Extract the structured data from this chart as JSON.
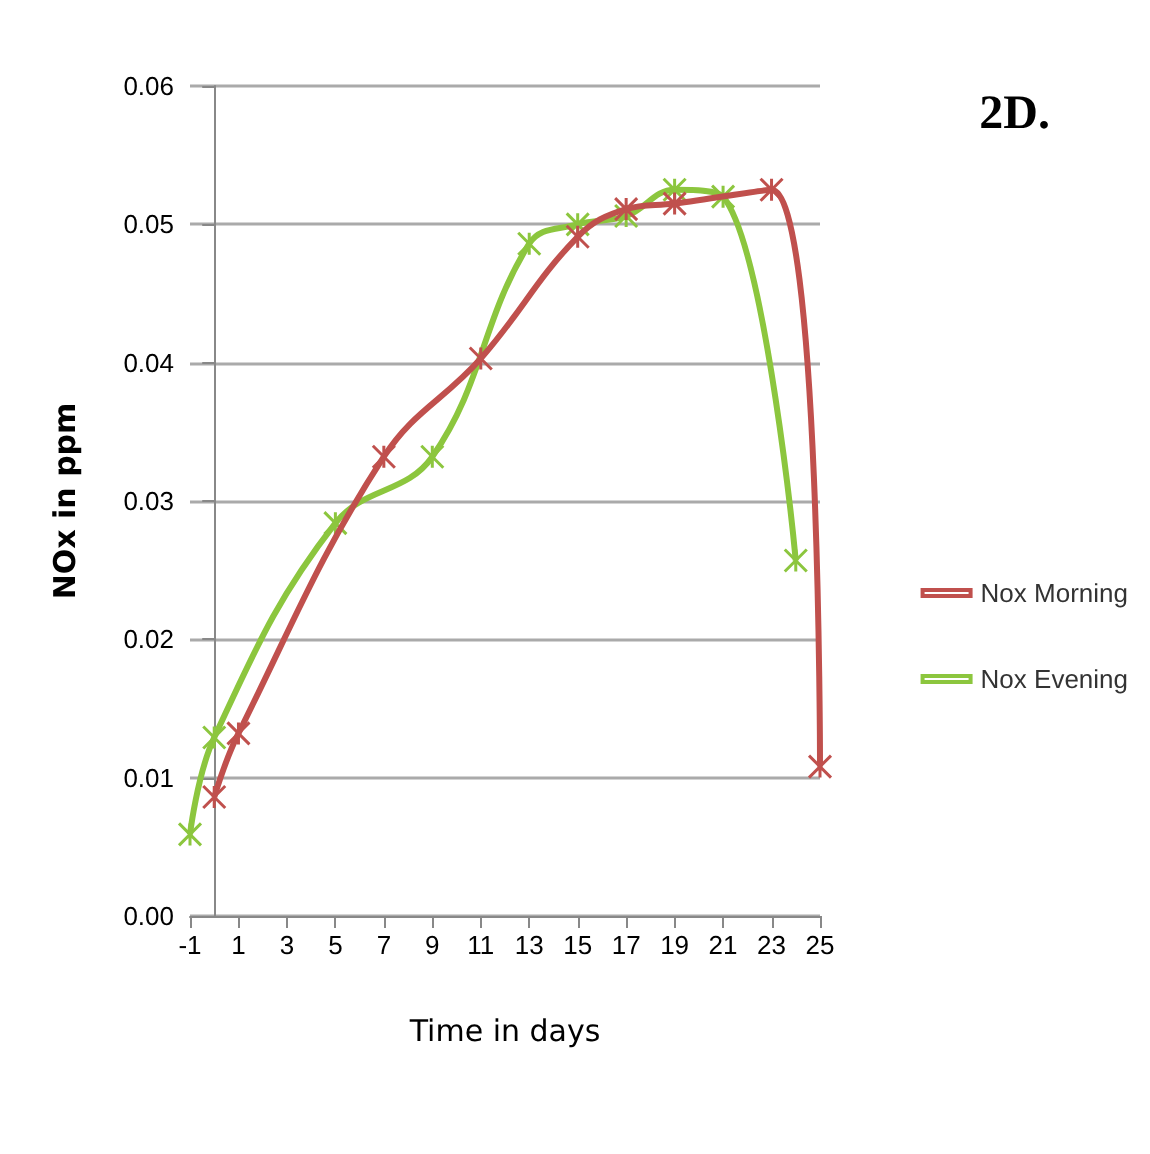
{
  "chart_data": {
    "type": "line",
    "title": "2D.",
    "xlabel": "Time in days",
    "ylabel": "NOx in ppm",
    "xlim": [
      -1,
      25
    ],
    "xticks": [
      -1,
      1,
      3,
      5,
      7,
      9,
      11,
      13,
      15,
      17,
      19,
      21,
      23,
      25
    ],
    "ylim": [
      0,
      0.06
    ],
    "yticks": [
      {
        "value": 0,
        "label": "0.00"
      },
      {
        "value": 0.01,
        "label": "0.01"
      },
      {
        "value": 0.02,
        "label": "0.02"
      },
      {
        "value": 0.03,
        "label": "0.03"
      },
      {
        "value": 0.04,
        "label": "0.04"
      },
      {
        "value": 0.05,
        "label": "0.05"
      },
      {
        "value": 0.06,
        "label": "0.06"
      }
    ],
    "grid": "y",
    "legend": "right",
    "marker": "cross",
    "line_style": "solid",
    "series": [
      {
        "name": "Nox Morning",
        "color": "#c0504d",
        "x": [
          0,
          1,
          7,
          11,
          15,
          17,
          19,
          23,
          25
        ],
        "values": [
          0.0086,
          0.0132,
          0.0332,
          0.0403,
          0.0491,
          0.0511,
          0.0515,
          0.0525,
          0.0108
        ]
      },
      {
        "name": "Nox Evening",
        "color": "#8cc63e",
        "x": [
          -1,
          0,
          5,
          9,
          13,
          15,
          17,
          19,
          21,
          24
        ],
        "values": [
          0.0059,
          0.0129,
          0.0284,
          0.0332,
          0.0486,
          0.05,
          0.0506,
          0.0525,
          0.052,
          0.0257
        ]
      }
    ]
  }
}
